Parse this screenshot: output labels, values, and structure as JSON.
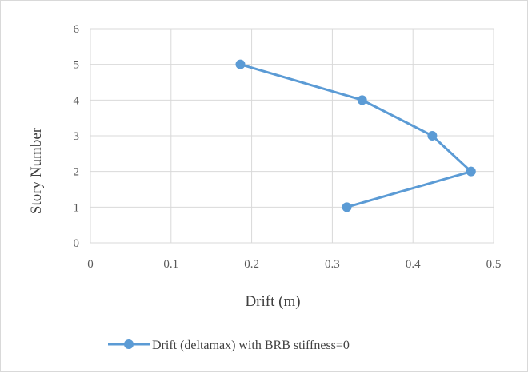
{
  "chart_data": {
    "type": "line",
    "title": "",
    "xlabel": "Drift (m)",
    "ylabel": "Story Number",
    "xlim": [
      0,
      0.5
    ],
    "ylim": [
      0,
      6
    ],
    "x_ticks": [
      "0",
      "0.1",
      "0.2",
      "0.3",
      "0.4",
      "0.5"
    ],
    "y_ticks": [
      "0",
      "1",
      "2",
      "3",
      "4",
      "5",
      "6"
    ],
    "grid": true,
    "legend_position": "bottom",
    "series": [
      {
        "name": "Drift (deltamax) with BRB stiffness=0",
        "color": "#5b9bd5",
        "x": [
          0.318,
          0.472,
          0.424,
          0.337,
          0.186
        ],
        "y": [
          1,
          2,
          3,
          4,
          5
        ]
      }
    ]
  }
}
